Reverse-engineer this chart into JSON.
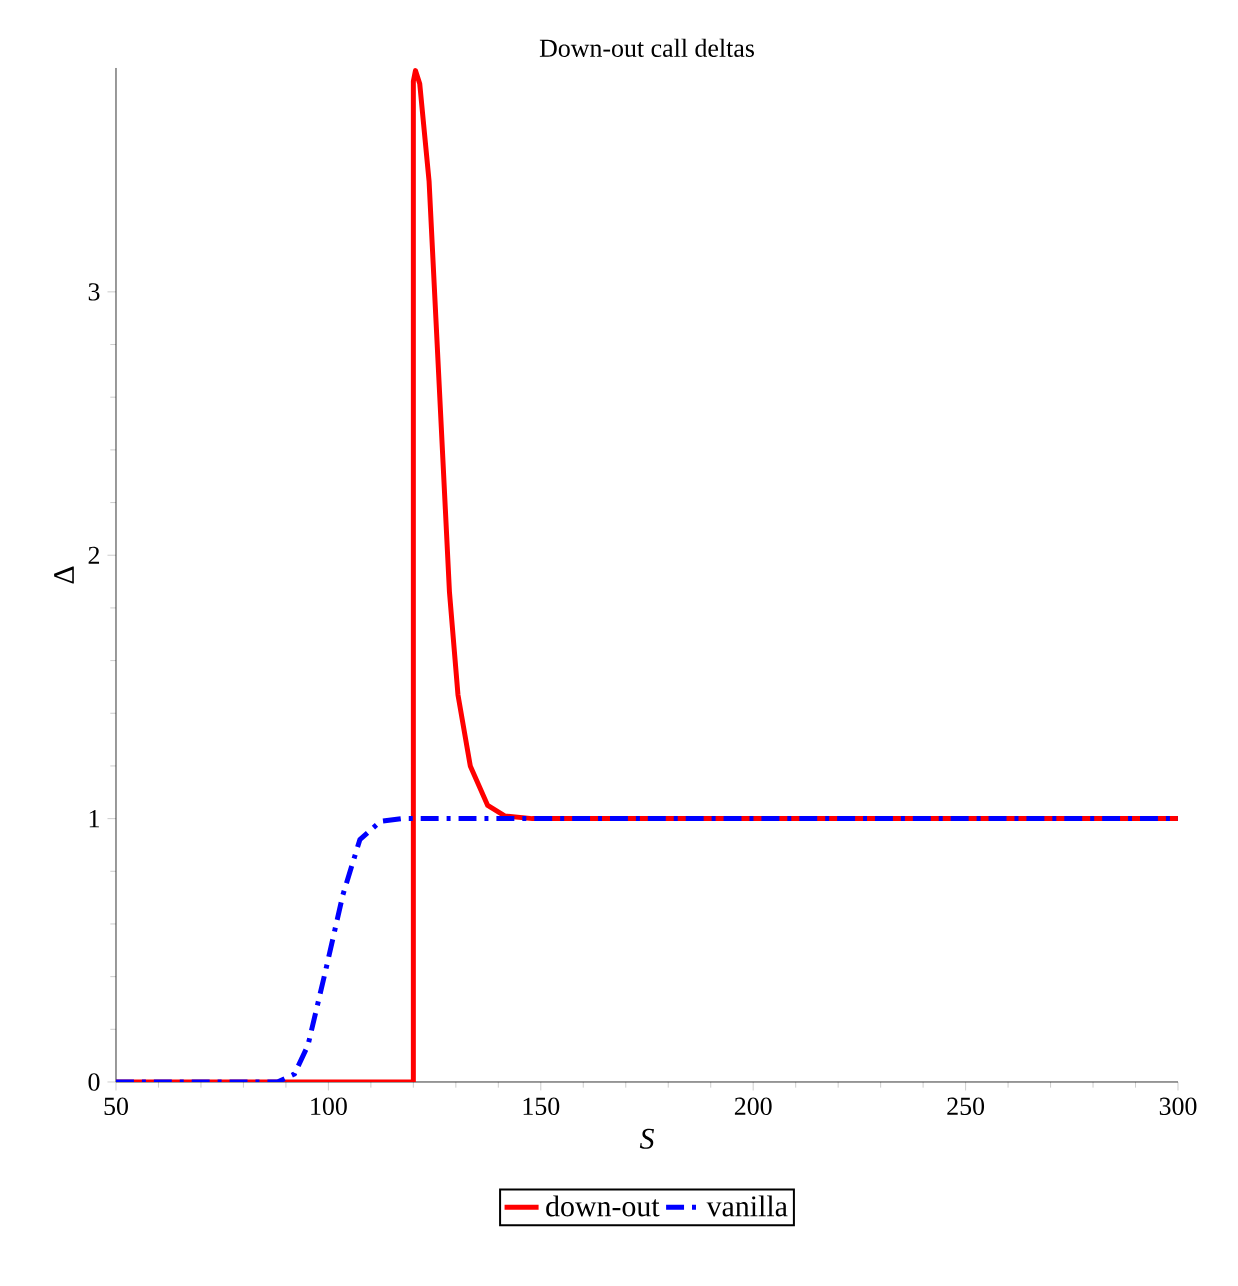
{
  "chart_data": {
    "type": "line",
    "title": "Down-out call deltas",
    "xlabel": "S",
    "ylabel": "Δ",
    "xlim": [
      50,
      300
    ],
    "ylim": [
      0,
      3.85
    ],
    "xticks": [
      50,
      100,
      150,
      200,
      250,
      300
    ],
    "yticks": [
      0,
      1,
      2,
      3
    ],
    "legend": "bottom",
    "series": [
      {
        "name": "down-out",
        "color": "#ff0000",
        "line_style": "solid",
        "x": [
          50,
          120,
          120,
          120.5,
          121.5,
          123.7,
          125.3,
          126.9,
          128.5,
          130.5,
          133.4,
          137.5,
          141.5,
          148,
          200,
          300
        ],
        "values": [
          0,
          0,
          3.8,
          3.84,
          3.79,
          3.42,
          2.9,
          2.38,
          1.86,
          1.47,
          1.2,
          1.05,
          1.01,
          1.0,
          1.0,
          1.0
        ]
      },
      {
        "name": "vanilla",
        "color": "#0000ff",
        "line_style": "dashdot",
        "x": [
          50,
          88,
          92,
          95.2,
          99.3,
          103.4,
          107.4,
          112.3,
          117.2,
          200,
          300
        ],
        "values": [
          0,
          0,
          0.03,
          0.14,
          0.42,
          0.71,
          0.92,
          0.99,
          1.0,
          1.0,
          1.0
        ]
      }
    ]
  }
}
